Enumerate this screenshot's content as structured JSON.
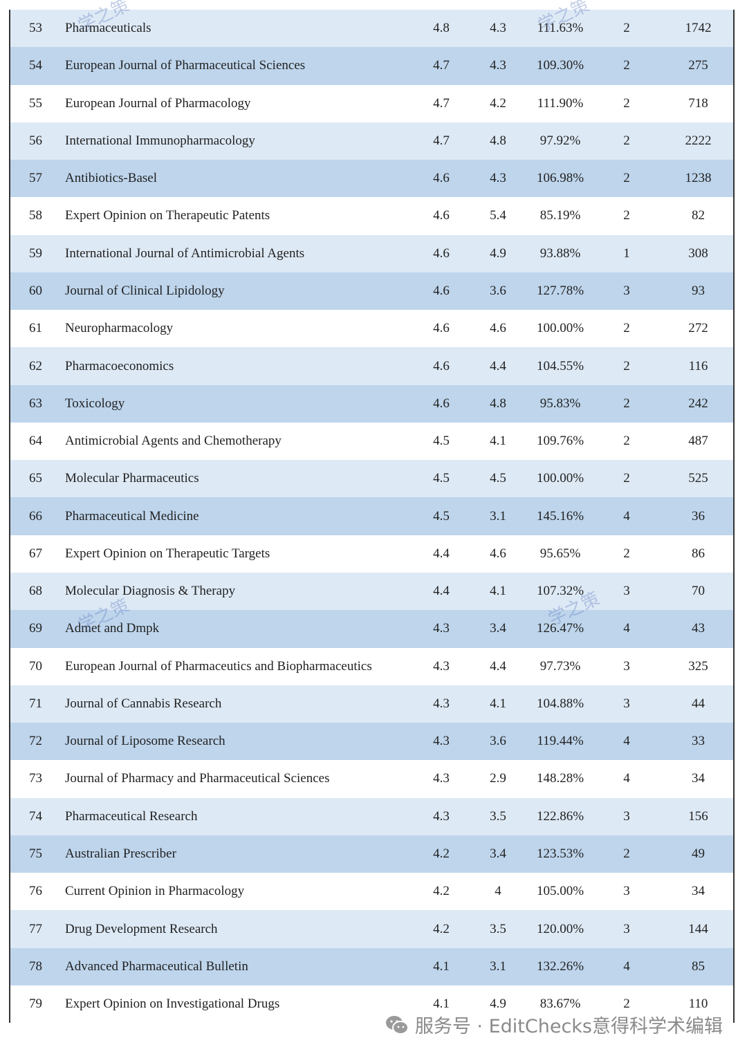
{
  "table": {
    "rows": [
      [
        "53",
        "Pharmaceuticals",
        "4.8",
        "4.3",
        "111.63%",
        "2",
        "1742"
      ],
      [
        "54",
        "European Journal of Pharmaceutical Sciences",
        "4.7",
        "4.3",
        "109.30%",
        "2",
        "275"
      ],
      [
        "55",
        "European Journal of Pharmacology",
        "4.7",
        "4.2",
        "111.90%",
        "2",
        "718"
      ],
      [
        "56",
        "International Immunopharmacology",
        "4.7",
        "4.8",
        "97.92%",
        "2",
        "2222"
      ],
      [
        "57",
        "Antibiotics-Basel",
        "4.6",
        "4.3",
        "106.98%",
        "2",
        "1238"
      ],
      [
        "58",
        "Expert Opinion on Therapeutic Patents",
        "4.6",
        "5.4",
        "85.19%",
        "2",
        "82"
      ],
      [
        "59",
        "International Journal of Antimicrobial Agents",
        "4.6",
        "4.9",
        "93.88%",
        "1",
        "308"
      ],
      [
        "60",
        "Journal of Clinical Lipidology",
        "4.6",
        "3.6",
        "127.78%",
        "3",
        "93"
      ],
      [
        "61",
        "Neuropharmacology",
        "4.6",
        "4.6",
        "100.00%",
        "2",
        "272"
      ],
      [
        "62",
        "Pharmacoeconomics",
        "4.6",
        "4.4",
        "104.55%",
        "2",
        "116"
      ],
      [
        "63",
        "Toxicology",
        "4.6",
        "4.8",
        "95.83%",
        "2",
        "242"
      ],
      [
        "64",
        "Antimicrobial Agents and Chemotherapy",
        "4.5",
        "4.1",
        "109.76%",
        "2",
        "487"
      ],
      [
        "65",
        "Molecular Pharmaceutics",
        "4.5",
        "4.5",
        "100.00%",
        "2",
        "525"
      ],
      [
        "66",
        "Pharmaceutical Medicine",
        "4.5",
        "3.1",
        "145.16%",
        "4",
        "36"
      ],
      [
        "67",
        "Expert Opinion on Therapeutic Targets",
        "4.4",
        "4.6",
        "95.65%",
        "2",
        "86"
      ],
      [
        "68",
        "Molecular Diagnosis & Therapy",
        "4.4",
        "4.1",
        "107.32%",
        "3",
        "70"
      ],
      [
        "69",
        "Admet and Dmpk",
        "4.3",
        "3.4",
        "126.47%",
        "4",
        "43"
      ],
      [
        "70",
        "European Journal of Pharmaceutics and Biopharmaceutics",
        "4.3",
        "4.4",
        "97.73%",
        "3",
        "325"
      ],
      [
        "71",
        "Journal of Cannabis Research",
        "4.3",
        "4.1",
        "104.88%",
        "3",
        "44"
      ],
      [
        "72",
        "Journal of Liposome Research",
        "4.3",
        "3.6",
        "119.44%",
        "4",
        "33"
      ],
      [
        "73",
        "Journal of Pharmacy and Pharmaceutical Sciences",
        "4.3",
        "2.9",
        "148.28%",
        "4",
        "34"
      ],
      [
        "74",
        "Pharmaceutical Research",
        "4.3",
        "3.5",
        "122.86%",
        "3",
        "156"
      ],
      [
        "75",
        "Australian Prescriber",
        "4.2",
        "3.4",
        "123.53%",
        "2",
        "49"
      ],
      [
        "76",
        "Current Opinion in Pharmacology",
        "4.2",
        "4",
        "105.00%",
        "3",
        "34"
      ],
      [
        "77",
        "Drug Development Research",
        "4.2",
        "3.5",
        "120.00%",
        "3",
        "144"
      ],
      [
        "78",
        "Advanced Pharmaceutical Bulletin",
        "4.1",
        "3.1",
        "132.26%",
        "4",
        "85"
      ],
      [
        "79",
        "Expert Opinion on Investigational Drugs",
        "4.1",
        "4.9",
        "83.67%",
        "2",
        "110"
      ]
    ]
  },
  "watermark": "学之策",
  "footer": "服务号 · EditChecks意得科学术编辑"
}
